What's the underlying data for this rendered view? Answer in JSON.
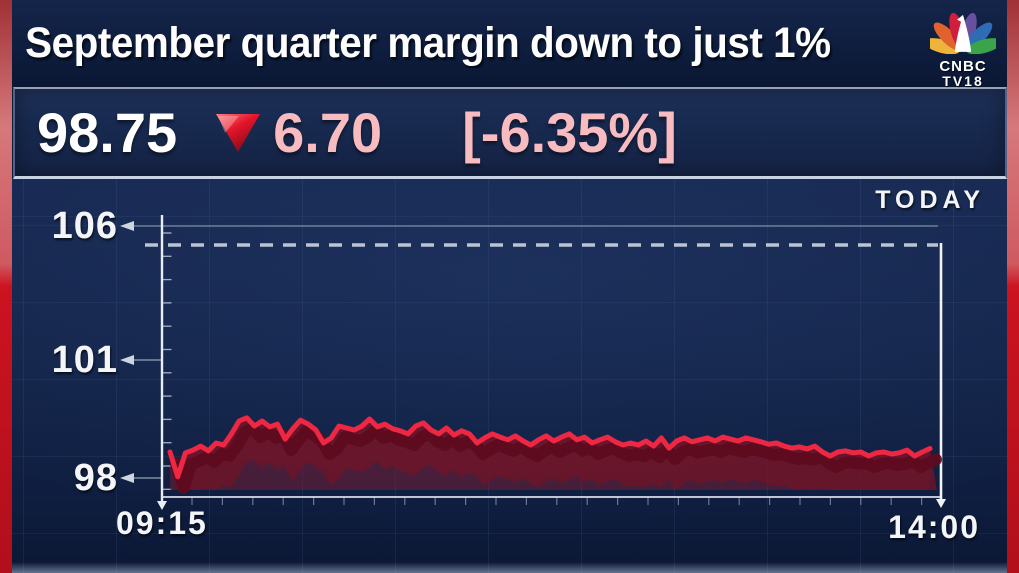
{
  "header": {
    "headline": "September quarter margin down to just 1%"
  },
  "logo": {
    "line1": "CNBC",
    "line2": "TV18"
  },
  "quote": {
    "price": "98.75",
    "change": "6.70",
    "change_pct_bracketed": "[-6.35%]",
    "direction": "down"
  },
  "chart": {
    "today_label": "TODAY"
  },
  "chart_data": {
    "type": "area",
    "title": "Intraday stock price (TODAY)",
    "x_range": [
      "09:15",
      "14:00"
    ],
    "y_ticks": [
      106,
      101,
      98
    ],
    "ylim": [
      97.5,
      106.5
    ],
    "dashed_reference_level": 105.45,
    "grid": true,
    "legend_position": "none",
    "series": [
      {
        "name": "price",
        "values": [
          98.66,
          98.03,
          98.64,
          98.71,
          98.81,
          98.69,
          98.89,
          98.84,
          99.12,
          99.45,
          99.53,
          99.32,
          99.45,
          99.3,
          99.37,
          98.99,
          99.25,
          99.47,
          99.37,
          99.22,
          98.89,
          99.02,
          99.32,
          99.27,
          99.22,
          99.32,
          99.5,
          99.3,
          99.37,
          99.25,
          99.2,
          99.12,
          99.32,
          99.4,
          99.22,
          99.12,
          99.27,
          99.09,
          99.2,
          99.12,
          98.89,
          99.02,
          99.12,
          99.04,
          98.97,
          99.07,
          98.94,
          98.84,
          98.97,
          99.07,
          98.94,
          99.04,
          99.12,
          98.97,
          99.04,
          98.89,
          98.97,
          99.04,
          98.92,
          98.84,
          98.89,
          98.84,
          98.94,
          98.81,
          99.02,
          98.76,
          98.94,
          99.02,
          98.92,
          98.97,
          99.02,
          98.94,
          99.04,
          98.99,
          98.94,
          99.02,
          98.97,
          98.92,
          98.86,
          98.89,
          98.81,
          98.76,
          98.79,
          98.74,
          98.81,
          98.66,
          98.56,
          98.66,
          98.69,
          98.64,
          98.66,
          98.56,
          98.64,
          98.66,
          98.61,
          98.64,
          98.71,
          98.56,
          98.66,
          98.75
        ]
      }
    ]
  },
  "colors": {
    "rail_red": "#cc1320",
    "line_red": "#ee2742",
    "area_maroon": "#7d1b2f",
    "pink_text": "#f8bcc0",
    "navy_bg": "#142448",
    "axis_white": "#e9eef5"
  }
}
